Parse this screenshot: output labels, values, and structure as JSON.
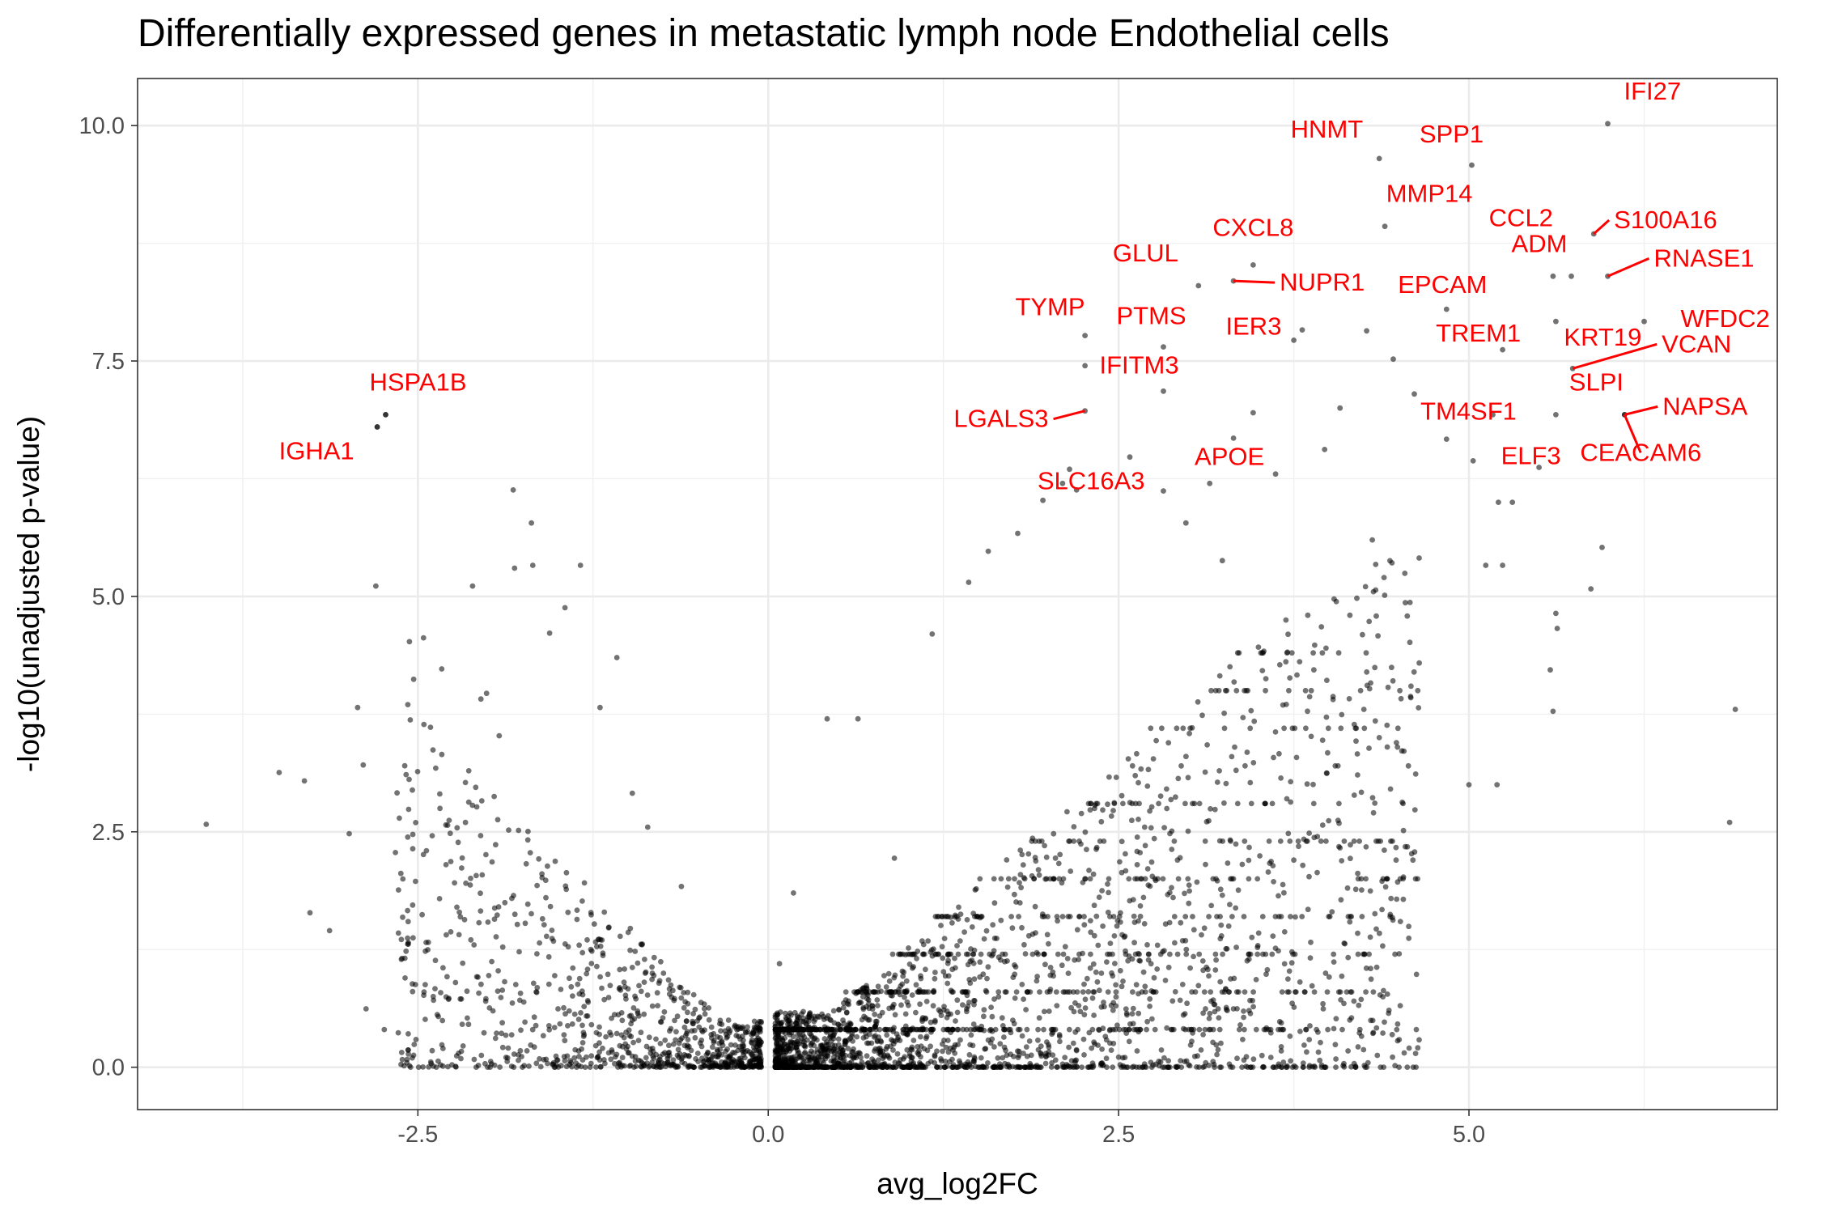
{
  "chart_data": {
    "type": "scatter",
    "title": "Differentially expressed genes in metastatic lymph node Endothelial cells",
    "xlabel": "avg_log2FC",
    "ylabel": "-log10(unadjusted p-value)",
    "xlim": [
      -4.5,
      7.2
    ],
    "ylim": [
      -0.45,
      10.5
    ],
    "x_ticks": [
      {
        "value": -2.5,
        "label": "-2.5"
      },
      {
        "value": 0,
        "label": "0.0"
      },
      {
        "value": 2.5,
        "label": "2.5"
      },
      {
        "value": 5,
        "label": "5.0"
      }
    ],
    "y_ticks": [
      {
        "value": 0,
        "label": "0.0"
      },
      {
        "value": 2.5,
        "label": "2.5"
      },
      {
        "value": 5,
        "label": "5.0"
      },
      {
        "value": 7.5,
        "label": "7.5"
      },
      {
        "value": 10,
        "label": "10.0"
      }
    ],
    "grid": true,
    "point_color": "#000000",
    "label_color": "#ff0000",
    "labeled_genes": [
      {
        "gene": "IFI27",
        "x": 5.99,
        "y": 10.02
      },
      {
        "gene": "HNMT",
        "x": 4.36,
        "y": 9.65
      },
      {
        "gene": "SPP1",
        "x": 5.02,
        "y": 9.58
      },
      {
        "gene": "MMP14",
        "x": 4.4,
        "y": 8.93
      },
      {
        "gene": "CCL2",
        "x": 5.6,
        "y": 8.4
      },
      {
        "gene": "S100A16",
        "x": 5.89,
        "y": 8.85
      },
      {
        "gene": "CXCL8",
        "x": 3.46,
        "y": 8.52
      },
      {
        "gene": "ADM",
        "x": 5.73,
        "y": 8.4
      },
      {
        "gene": "RNASE1",
        "x": 5.99,
        "y": 8.4
      },
      {
        "gene": "GLUL",
        "x": 3.07,
        "y": 8.3
      },
      {
        "gene": "NUPR1",
        "x": 3.32,
        "y": 8.35
      },
      {
        "gene": "EPCAM",
        "x": 4.84,
        "y": 8.05
      },
      {
        "gene": "KRT19",
        "x": 5.62,
        "y": 7.92
      },
      {
        "gene": "WFDC2",
        "x": 6.25,
        "y": 7.92
      },
      {
        "gene": "TYMP",
        "x": 2.26,
        "y": 7.77
      },
      {
        "gene": "PTMS",
        "x": 2.82,
        "y": 7.65
      },
      {
        "gene": "IER3",
        "x": 3.81,
        "y": 7.83
      },
      {
        "gene": "TREM1",
        "x": 5.24,
        "y": 7.62
      },
      {
        "gene": "VCAN",
        "x": 5.74,
        "y": 7.42
      },
      {
        "gene": "HSPA1B",
        "x": -2.73,
        "y": 6.93
      },
      {
        "gene": "IFITM3",
        "x": 2.82,
        "y": 7.18
      },
      {
        "gene": "TM4SF1",
        "x": 5.17,
        "y": 6.93
      },
      {
        "gene": "SLPI",
        "x": 5.62,
        "y": 6.93
      },
      {
        "gene": "LGALS3",
        "x": 2.26,
        "y": 6.97
      },
      {
        "gene": "APOE",
        "x": 3.32,
        "y": 6.68
      },
      {
        "gene": "NAPSA",
        "x": 6.11,
        "y": 6.93
      },
      {
        "gene": "IGHA1",
        "x": -2.79,
        "y": 6.8
      },
      {
        "gene": "ELF3",
        "x": 5.5,
        "y": 6.37
      },
      {
        "gene": "CEACAM6",
        "x": 6.11,
        "y": 6.93
      },
      {
        "gene": "SLC16A3",
        "x": 2.2,
        "y": 6.13
      }
    ],
    "background_points_note": "",
    "scatter_points": [
      [
        -4.01,
        2.58
      ],
      [
        -3.49,
        3.13
      ],
      [
        -3.31,
        3.04
      ],
      [
        -3.27,
        1.64
      ],
      [
        -3.13,
        1.45
      ],
      [
        -2.99,
        2.48
      ],
      [
        -2.93,
        3.82
      ],
      [
        -2.89,
        3.21
      ],
      [
        -2.87,
        0.62
      ],
      [
        -2.8,
        5.11
      ],
      [
        -2.79,
        6.8
      ],
      [
        -2.73,
        6.93
      ],
      [
        -2.74,
        0.4
      ],
      [
        -2.66,
        2.28
      ],
      [
        -2.62,
        0.03
      ],
      [
        -2.56,
        4.52
      ],
      [
        -2.53,
        4.12
      ],
      [
        -2.46,
        4.56
      ],
      [
        -2.41,
        3.61
      ],
      [
        -2.33,
        4.23
      ],
      [
        -2.11,
        5.11
      ],
      [
        -2.05,
        3.91
      ],
      [
        -2.01,
        3.97
      ],
      [
        -1.92,
        3.52
      ],
      [
        -1.82,
        6.13
      ],
      [
        -1.81,
        5.3
      ],
      [
        -1.69,
        5.78
      ],
      [
        -1.68,
        5.33
      ],
      [
        -1.56,
        4.61
      ],
      [
        -1.45,
        4.88
      ],
      [
        -1.34,
        5.33
      ],
      [
        -1.2,
        3.82
      ],
      [
        -1.08,
        4.35
      ],
      [
        -0.97,
        2.91
      ],
      [
        -0.86,
        2.55
      ],
      [
        -0.62,
        1.92
      ],
      [
        0.08,
        1.1
      ],
      [
        0.18,
        1.85
      ],
      [
        0.42,
        3.7
      ],
      [
        0.64,
        3.7
      ],
      [
        0.9,
        2.22
      ],
      [
        1.17,
        4.6
      ],
      [
        1.43,
        5.15
      ],
      [
        1.57,
        5.48
      ],
      [
        1.78,
        5.67
      ],
      [
        1.96,
        6.02
      ],
      [
        2.1,
        6.2
      ],
      [
        2.15,
        6.35
      ],
      [
        2.26,
        7.45
      ],
      [
        2.58,
        6.48
      ],
      [
        2.82,
        6.12
      ],
      [
        2.98,
        5.78
      ],
      [
        3.15,
        6.2
      ],
      [
        3.24,
        5.38
      ],
      [
        3.46,
        6.95
      ],
      [
        3.62,
        6.3
      ],
      [
        3.75,
        7.72
      ],
      [
        3.97,
        6.56
      ],
      [
        4.08,
        7.0
      ],
      [
        4.27,
        7.82
      ],
      [
        4.46,
        7.52
      ],
      [
        4.61,
        7.15
      ],
      [
        4.84,
        6.67
      ],
      [
        5.03,
        6.44
      ],
      [
        5.21,
        6.0
      ],
      [
        5.31,
        6.0
      ],
      [
        5.12,
        5.33
      ],
      [
        5.24,
        5.33
      ],
      [
        5.62,
        4.82
      ],
      [
        5.63,
        4.66
      ],
      [
        5.58,
        4.22
      ],
      [
        5.6,
        3.78
      ],
      [
        6.9,
        3.8
      ],
      [
        6.86,
        2.6
      ],
      [
        5.95,
        5.52
      ],
      [
        5.87,
        5.08
      ],
      [
        5.2,
        3.0
      ],
      [
        5.0,
        3.0
      ],
      [
        4.2,
        4.98
      ],
      [
        3.98,
        4.45
      ],
      [
        4.25,
        3.8
      ],
      [
        4.36,
        3.5
      ],
      [
        4.49,
        3.4
      ],
      [
        4.6,
        2.2
      ],
      [
        4.48,
        2.2
      ],
      [
        3.75,
        2.2
      ],
      [
        3.66,
        1.6
      ],
      [
        3.96,
        0.62
      ],
      [
        3.64,
        1.82
      ],
      [
        3.32,
        0.62
      ],
      [
        3.21,
        0.62
      ],
      [
        2.53,
        0.1
      ],
      [
        2.45,
        1.0
      ],
      [
        2.8,
        2.88
      ],
      [
        2.92,
        2.2
      ],
      [
        3.12,
        0.62
      ],
      [
        -0.08,
        0.22
      ],
      [
        0.07,
        0.25
      ],
      [
        -0.3,
        0.35
      ],
      [
        0.32,
        0.41
      ],
      [
        -1.5,
        0.62
      ],
      [
        -0.95,
        1.23
      ]
    ]
  }
}
